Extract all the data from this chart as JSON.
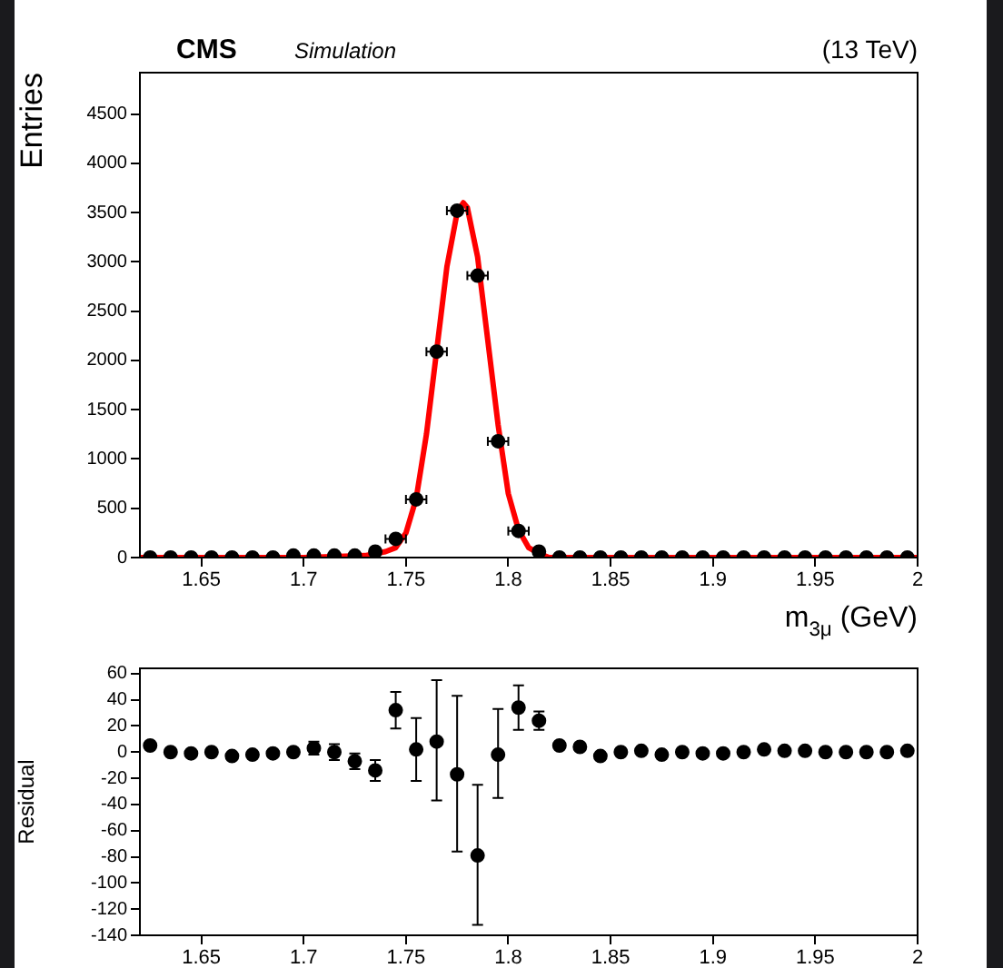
{
  "chart_data": [
    {
      "type": "scatter",
      "annotations": [
        "CMS",
        "Simulation",
        "(13 TeV)"
      ],
      "xlabel": "m$_{3μ}$ (GeV)",
      "ylabel": "Entries",
      "x": [
        1.625,
        1.635,
        1.645,
        1.655,
        1.665,
        1.675,
        1.685,
        1.695,
        1.705,
        1.715,
        1.725,
        1.735,
        1.745,
        1.755,
        1.765,
        1.775,
        1.785,
        1.795,
        1.805,
        1.815,
        1.825,
        1.835,
        1.845,
        1.855,
        1.865,
        1.875,
        1.885,
        1.895,
        1.905,
        1.915,
        1.925,
        1.935,
        1.945,
        1.955,
        1.965,
        1.975,
        1.985,
        1.995
      ],
      "series": [
        {
          "color": "#000000",
          "marker": "circle",
          "values": [
            0,
            0,
            0,
            0,
            0,
            0,
            0,
            20,
            20,
            20,
            20,
            60,
            190,
            590,
            2090,
            3520,
            2860,
            1180,
            270,
            60,
            0,
            0,
            0,
            0,
            0,
            0,
            0,
            0,
            0,
            0,
            0,
            0,
            0,
            0,
            0,
            0,
            0,
            0
          ],
          "xerrors": [
            null,
            null,
            null,
            null,
            null,
            null,
            null,
            null,
            null,
            null,
            null,
            null,
            0.005,
            0.005,
            0.005,
            0.005,
            0.005,
            0.005,
            0.005,
            null,
            null,
            null,
            null,
            null,
            null,
            null,
            null,
            null,
            null,
            null,
            null,
            null,
            null,
            null,
            null,
            null,
            null,
            null
          ]
        },
        {
          "type": "line",
          "color": "#ff0000",
          "marker": "none",
          "x": [
            1.62,
            1.7,
            1.73,
            1.74,
            1.745,
            1.75,
            1.755,
            1.76,
            1.765,
            1.77,
            1.775,
            1.778,
            1.78,
            1.785,
            1.79,
            1.795,
            1.8,
            1.805,
            1.81,
            1.815,
            1.82,
            1.85,
            2.0
          ],
          "values": [
            0,
            0,
            20,
            60,
            100,
            250,
            600,
            1250,
            2100,
            2950,
            3500,
            3600,
            3550,
            3050,
            2200,
            1350,
            650,
            280,
            100,
            40,
            0,
            0,
            0
          ]
        }
      ],
      "xlim": [
        1.62,
        2.0
      ],
      "xticks": [
        1.65,
        1.7,
        1.75,
        1.8,
        1.85,
        1.9,
        1.95,
        2
      ],
      "ylim": [
        0,
        4920
      ],
      "yticks": [
        0,
        500,
        1000,
        1500,
        2000,
        2500,
        3000,
        3500,
        4000,
        4500
      ]
    },
    {
      "type": "scatter",
      "ylabel": "Residual",
      "x": [
        1.625,
        1.635,
        1.645,
        1.655,
        1.665,
        1.675,
        1.685,
        1.695,
        1.705,
        1.715,
        1.725,
        1.735,
        1.745,
        1.755,
        1.765,
        1.775,
        1.785,
        1.795,
        1.805,
        1.815,
        1.825,
        1.835,
        1.845,
        1.855,
        1.865,
        1.875,
        1.885,
        1.895,
        1.905,
        1.915,
        1.925,
        1.935,
        1.945,
        1.955,
        1.965,
        1.975,
        1.985,
        1.995
      ],
      "series": [
        {
          "color": "#000000",
          "marker": "circle",
          "values": [
            5,
            0,
            -1,
            0,
            -3,
            -2,
            -1,
            0,
            3,
            0,
            -7,
            -14,
            32,
            2,
            8,
            -17,
            -79,
            -2,
            34,
            24,
            5,
            4,
            -3,
            0,
            1,
            -2,
            0,
            -1,
            -1,
            0,
            2,
            1,
            1,
            0,
            0,
            0,
            0,
            1
          ],
          "errors": [
            null,
            null,
            null,
            null,
            null,
            null,
            null,
            null,
            5,
            6,
            6,
            8,
            [
              18,
              46
            ],
            [
              -22,
              26
            ],
            [
              -37,
              55
            ],
            [
              -76,
              43
            ],
            [
              -132,
              -25
            ],
            [
              -35,
              33
            ],
            [
              17,
              51
            ],
            [
              17,
              31
            ],
            null,
            null,
            null,
            null,
            null,
            null,
            null,
            null,
            null,
            null,
            null,
            null,
            null,
            null,
            null,
            null,
            null,
            null
          ]
        }
      ],
      "xlim": [
        1.62,
        2.0
      ],
      "xticks": [
        1.65,
        1.7,
        1.75,
        1.8,
        1.85,
        1.9,
        1.95,
        2
      ],
      "ylim": [
        -140,
        64
      ],
      "yticks": [
        -140,
        -120,
        -100,
        -80,
        -60,
        -40,
        -20,
        0,
        20,
        40,
        60
      ]
    }
  ]
}
